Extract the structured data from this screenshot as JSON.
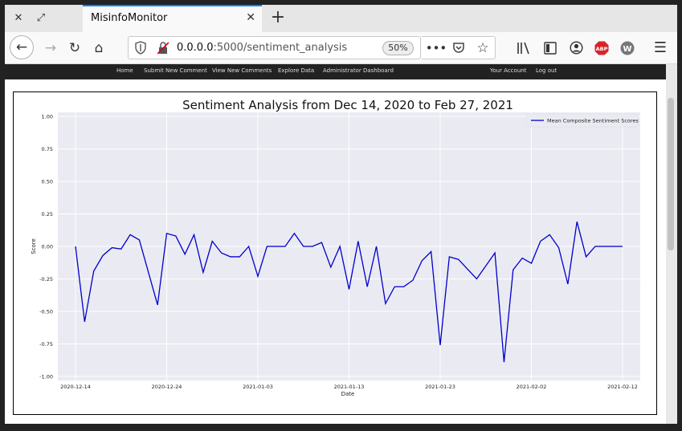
{
  "browser": {
    "tab_title": "MisinfoMonitor",
    "url_host": "0.0.0.0",
    "url_path": ":5000/sentiment_analysis",
    "zoom": "50%",
    "icons": {
      "close_window": "close-icon",
      "resize_window": "resize-icon",
      "tab_close": "close-icon",
      "new_tab": "plus-icon",
      "back": "arrow-left-icon",
      "forward": "arrow-right-icon",
      "reload": "reload-icon",
      "home": "home-icon",
      "shield": "shield-icon",
      "insecure": "insecure-lock-icon",
      "more": "more-icon",
      "pocket": "pocket-icon",
      "bookmark": "star-icon",
      "library": "library-icon",
      "sidebar": "sidebar-icon",
      "account": "account-icon",
      "adblock": "abp-icon",
      "extension": "w-icon",
      "menu": "hamburger-icon"
    },
    "abp_label": "ABP",
    "ext_label": "W"
  },
  "sitenav": {
    "items": [
      "Home",
      "Submit New Comment",
      "View New Comments",
      "Explore Data",
      "Administrator Dashboard"
    ],
    "right_items": [
      "Your Account",
      "Log out"
    ]
  },
  "chart_data": {
    "type": "line",
    "title": "Sentiment Analysis from Dec 14, 2020 to Feb 27, 2021",
    "xlabel": "Date",
    "ylabel": "Score",
    "ylim": [
      -1.0,
      1.0
    ],
    "yticks": [
      "1.00",
      "0.75",
      "0.50",
      "0.25",
      "0.00",
      "-0.25",
      "-0.50",
      "-0.75",
      "-1.00"
    ],
    "xticks": [
      "2020-12-14",
      "2020-12-24",
      "2021-01-03",
      "2021-01-13",
      "2021-01-23",
      "2021-02-02",
      "2021-02-12"
    ],
    "grid": true,
    "legend_position": "top-right",
    "series": [
      {
        "name": "Mean Composite Sentiment Scores",
        "color": "#0000cc",
        "x": [
          "2020-12-14",
          "2020-12-15",
          "2020-12-16",
          "2020-12-17",
          "2020-12-18",
          "2020-12-19",
          "2020-12-20",
          "2020-12-21",
          "2020-12-22",
          "2020-12-23",
          "2020-12-24",
          "2020-12-25",
          "2020-12-26",
          "2020-12-27",
          "2020-12-28",
          "2020-12-29",
          "2020-12-30",
          "2020-12-31",
          "2021-01-01",
          "2021-01-02",
          "2021-01-03",
          "2021-01-04",
          "2021-01-05",
          "2021-01-06",
          "2021-01-07",
          "2021-01-08",
          "2021-01-09",
          "2021-01-10",
          "2021-01-11",
          "2021-01-12",
          "2021-01-13",
          "2021-01-14",
          "2021-01-15",
          "2021-01-16",
          "2021-01-17",
          "2021-01-18",
          "2021-01-19",
          "2021-01-20",
          "2021-01-21",
          "2021-01-22",
          "2021-01-23",
          "2021-01-24",
          "2021-01-25",
          "2021-01-27",
          "2021-01-29",
          "2021-01-30",
          "2021-01-31",
          "2021-02-01",
          "2021-02-02",
          "2021-02-03",
          "2021-02-04",
          "2021-02-05",
          "2021-02-06",
          "2021-02-07",
          "2021-02-08",
          "2021-02-09",
          "2021-02-10",
          "2021-02-11",
          "2021-02-12"
        ],
        "values": [
          0.0,
          -0.58,
          -0.19,
          -0.07,
          -0.01,
          -0.02,
          0.09,
          0.05,
          -0.2,
          -0.45,
          0.1,
          0.08,
          -0.06,
          0.09,
          -0.2,
          0.04,
          -0.05,
          -0.08,
          -0.08,
          0.0,
          -0.23,
          0.0,
          0.0,
          0.0,
          0.1,
          0.0,
          0.0,
          0.03,
          -0.16,
          0.0,
          -0.33,
          0.04,
          -0.31,
          0.0,
          -0.44,
          -0.31,
          -0.31,
          -0.26,
          -0.11,
          -0.04,
          -0.76,
          -0.08,
          -0.1,
          -0.25,
          -0.05,
          -0.89,
          -0.18,
          -0.09,
          -0.13,
          0.04,
          0.09,
          -0.01,
          -0.29,
          0.19,
          -0.08,
          0.0,
          0.0,
          0.0,
          0.0
        ]
      }
    ]
  }
}
